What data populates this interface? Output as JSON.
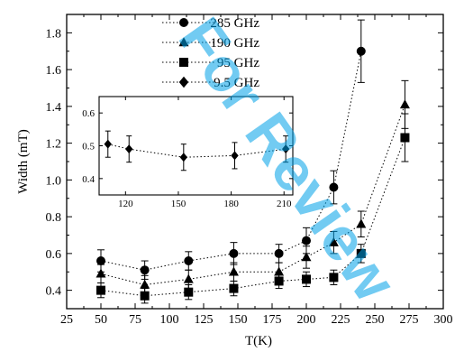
{
  "watermark": "For Review",
  "chart_data": [
    {
      "type": "scatter",
      "xlabel": "T(K)",
      "ylabel": "Width (mT)",
      "xlim": [
        25,
        300
      ],
      "ylim": [
        0.3,
        1.9
      ],
      "xticks": [
        "25",
        "50",
        "75",
        "100",
        "125",
        "150",
        "175",
        "200",
        "225",
        "250",
        "275",
        "300"
      ],
      "yticks": [
        "0.4",
        "0.6",
        "0.8",
        "1.0",
        "1.2",
        "1.4",
        "1.6",
        "1.8"
      ],
      "legend_position": "top-left",
      "line_style": "dotted",
      "series": [
        {
          "name": "285 GHz",
          "marker": "circle",
          "x": [
            50,
            82,
            114,
            147,
            180,
            200,
            220,
            240
          ],
          "y": [
            0.56,
            0.51,
            0.56,
            0.6,
            0.6,
            0.67,
            0.96,
            1.7
          ],
          "yerr": [
            0.06,
            0.05,
            0.05,
            0.06,
            0.05,
            0.07,
            0.09,
            0.17
          ]
        },
        {
          "name": "190 GHz",
          "marker": "triangle",
          "x": [
            50,
            82,
            114,
            147,
            180,
            200,
            220,
            240,
            272
          ],
          "y": [
            0.49,
            0.43,
            0.46,
            0.5,
            0.5,
            0.58,
            0.66,
            0.76,
            1.41
          ],
          "yerr": [
            0.05,
            0.05,
            0.05,
            0.05,
            0.05,
            0.06,
            0.06,
            0.07,
            0.13
          ]
        },
        {
          "name": "95 GHz",
          "marker": "square",
          "x": [
            50,
            82,
            114,
            147,
            180,
            200,
            220,
            240,
            272
          ],
          "y": [
            0.4,
            0.37,
            0.39,
            0.41,
            0.45,
            0.46,
            0.47,
            0.6,
            1.23
          ],
          "yerr": [
            0.04,
            0.04,
            0.04,
            0.04,
            0.04,
            0.04,
            0.04,
            0.05,
            0.13
          ]
        },
        {
          "name": "9.5 GHz",
          "marker": "diamond",
          "x": [],
          "y": []
        }
      ]
    },
    {
      "type": "scatter",
      "xlabel": "",
      "ylabel": "",
      "xlim": [
        105,
        215
      ],
      "ylim": [
        0.35,
        0.65
      ],
      "xticks": [
        "120",
        "150",
        "180",
        "210"
      ],
      "yticks": [
        "0.4",
        "0.5",
        "0.6"
      ],
      "line_style": "dotted",
      "series": [
        {
          "name": "9.5 GHz",
          "marker": "diamond",
          "x": [
            110,
            122,
            153,
            182,
            211
          ],
          "y": [
            0.505,
            0.49,
            0.465,
            0.47,
            0.49
          ],
          "yerr": [
            0.04,
            0.04,
            0.04,
            0.04,
            0.04
          ]
        }
      ]
    }
  ]
}
